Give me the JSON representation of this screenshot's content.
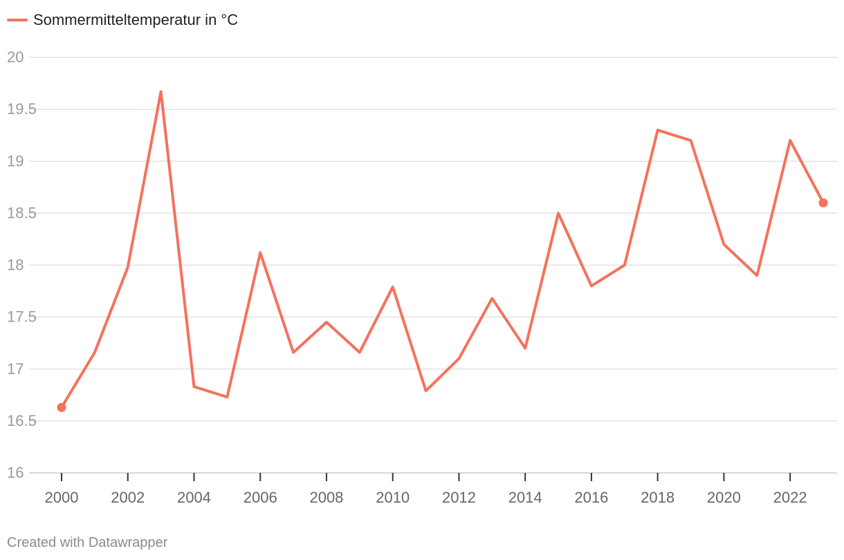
{
  "chart_data": {
    "type": "line",
    "title": "",
    "xlabel": "",
    "ylabel": "",
    "x": [
      2000,
      2001,
      2002,
      2003,
      2004,
      2005,
      2006,
      2007,
      2008,
      2009,
      2010,
      2011,
      2012,
      2013,
      2014,
      2015,
      2016,
      2017,
      2018,
      2019,
      2020,
      2021,
      2022,
      2023
    ],
    "series": [
      {
        "name": "Sommermitteltemperatur in °C",
        "color": "#f4725c",
        "values": [
          16.63,
          17.16,
          17.98,
          19.67,
          16.83,
          16.73,
          18.12,
          17.16,
          17.45,
          17.16,
          17.79,
          16.79,
          17.1,
          17.68,
          17.2,
          18.5,
          17.8,
          18.0,
          19.3,
          19.2,
          18.2,
          17.9,
          19.2,
          18.6
        ]
      }
    ],
    "xlim": [
      2000,
      2023
    ],
    "ylim": [
      16,
      20
    ],
    "y_ticks": [
      "16",
      "16.5",
      "17",
      "17.5",
      "18",
      "18.5",
      "19",
      "19.5",
      "20"
    ],
    "x_ticks": [
      "2000",
      "2002",
      "2004",
      "2006",
      "2008",
      "2010",
      "2012",
      "2014",
      "2016",
      "2018",
      "2020",
      "2022"
    ],
    "endpoint_markers": true,
    "grid": "horizontal",
    "legend_position": "top-left"
  },
  "footer": {
    "credit": "Created with Datawrapper"
  },
  "colors": {
    "line": "#f4725c",
    "grid": "#e2e2e2",
    "axis": "#333333",
    "tick_text": "#9a9a9a",
    "x_tick_text": "#666666"
  }
}
